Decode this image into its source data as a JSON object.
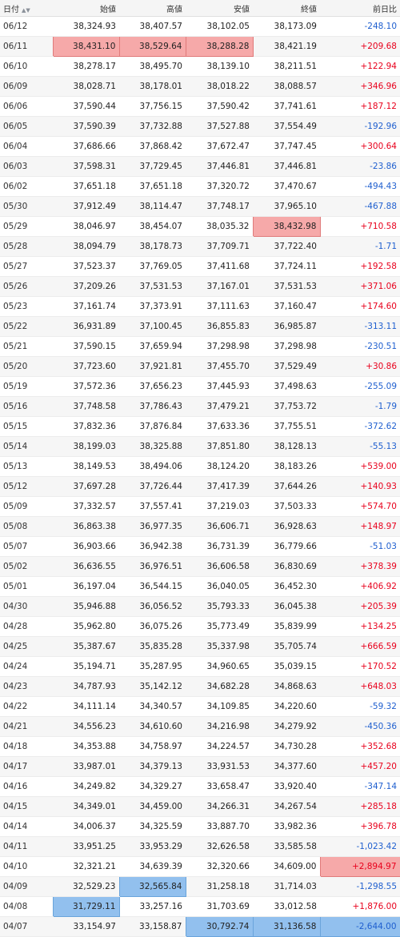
{
  "headers": {
    "date": "日付",
    "open": "始値",
    "high": "高値",
    "low": "安値",
    "close": "終値",
    "change": "前日比"
  },
  "colors": {
    "positive": "#e8001c",
    "negative": "#1f5fcf",
    "highlight_red": "#f6a9a9",
    "highlight_blue": "#92c0ee"
  },
  "rows": [
    {
      "date": "06/12",
      "open": "38,324.93",
      "high": "38,407.57",
      "low": "38,102.05",
      "close": "38,173.09",
      "change": "-248.10"
    },
    {
      "date": "06/11",
      "open": "38,431.10",
      "high": "38,529.64",
      "low": "38,288.28",
      "close": "38,421.19",
      "change": "+209.68",
      "hl": {
        "open": "red",
        "high": "red",
        "low": "red"
      }
    },
    {
      "date": "06/10",
      "open": "38,278.17",
      "high": "38,495.70",
      "low": "38,139.10",
      "close": "38,211.51",
      "change": "+122.94"
    },
    {
      "date": "06/09",
      "open": "38,028.71",
      "high": "38,178.01",
      "low": "38,018.22",
      "close": "38,088.57",
      "change": "+346.96"
    },
    {
      "date": "06/06",
      "open": "37,590.44",
      "high": "37,756.15",
      "low": "37,590.42",
      "close": "37,741.61",
      "change": "+187.12"
    },
    {
      "date": "06/05",
      "open": "37,590.39",
      "high": "37,732.88",
      "low": "37,527.88",
      "close": "37,554.49",
      "change": "-192.96"
    },
    {
      "date": "06/04",
      "open": "37,686.66",
      "high": "37,868.42",
      "low": "37,672.47",
      "close": "37,747.45",
      "change": "+300.64"
    },
    {
      "date": "06/03",
      "open": "37,598.31",
      "high": "37,729.45",
      "low": "37,446.81",
      "close": "37,446.81",
      "change": "-23.86"
    },
    {
      "date": "06/02",
      "open": "37,651.18",
      "high": "37,651.18",
      "low": "37,320.72",
      "close": "37,470.67",
      "change": "-494.43"
    },
    {
      "date": "05/30",
      "open": "37,912.49",
      "high": "38,114.47",
      "low": "37,748.17",
      "close": "37,965.10",
      "change": "-467.88"
    },
    {
      "date": "05/29",
      "open": "38,046.97",
      "high": "38,454.07",
      "low": "38,035.32",
      "close": "38,432.98",
      "change": "+710.58",
      "hl": {
        "close": "red"
      }
    },
    {
      "date": "05/28",
      "open": "38,094.79",
      "high": "38,178.73",
      "low": "37,709.71",
      "close": "37,722.40",
      "change": "-1.71"
    },
    {
      "date": "05/27",
      "open": "37,523.37",
      "high": "37,769.05",
      "low": "37,411.68",
      "close": "37,724.11",
      "change": "+192.58"
    },
    {
      "date": "05/26",
      "open": "37,209.26",
      "high": "37,531.53",
      "low": "37,167.01",
      "close": "37,531.53",
      "change": "+371.06"
    },
    {
      "date": "05/23",
      "open": "37,161.74",
      "high": "37,373.91",
      "low": "37,111.63",
      "close": "37,160.47",
      "change": "+174.60"
    },
    {
      "date": "05/22",
      "open": "36,931.89",
      "high": "37,100.45",
      "low": "36,855.83",
      "close": "36,985.87",
      "change": "-313.11"
    },
    {
      "date": "05/21",
      "open": "37,590.15",
      "high": "37,659.94",
      "low": "37,298.98",
      "close": "37,298.98",
      "change": "-230.51"
    },
    {
      "date": "05/20",
      "open": "37,723.60",
      "high": "37,921.81",
      "low": "37,455.70",
      "close": "37,529.49",
      "change": "+30.86"
    },
    {
      "date": "05/19",
      "open": "37,572.36",
      "high": "37,656.23",
      "low": "37,445.93",
      "close": "37,498.63",
      "change": "-255.09"
    },
    {
      "date": "05/16",
      "open": "37,748.58",
      "high": "37,786.43",
      "low": "37,479.21",
      "close": "37,753.72",
      "change": "-1.79"
    },
    {
      "date": "05/15",
      "open": "37,832.36",
      "high": "37,876.84",
      "low": "37,633.36",
      "close": "37,755.51",
      "change": "-372.62"
    },
    {
      "date": "05/14",
      "open": "38,199.03",
      "high": "38,325.88",
      "low": "37,851.80",
      "close": "38,128.13",
      "change": "-55.13"
    },
    {
      "date": "05/13",
      "open": "38,149.53",
      "high": "38,494.06",
      "low": "38,124.20",
      "close": "38,183.26",
      "change": "+539.00"
    },
    {
      "date": "05/12",
      "open": "37,697.28",
      "high": "37,726.44",
      "low": "37,417.39",
      "close": "37,644.26",
      "change": "+140.93"
    },
    {
      "date": "05/09",
      "open": "37,332.57",
      "high": "37,557.41",
      "low": "37,219.03",
      "close": "37,503.33",
      "change": "+574.70"
    },
    {
      "date": "05/08",
      "open": "36,863.38",
      "high": "36,977.35",
      "low": "36,606.71",
      "close": "36,928.63",
      "change": "+148.97"
    },
    {
      "date": "05/07",
      "open": "36,903.66",
      "high": "36,942.38",
      "low": "36,731.39",
      "close": "36,779.66",
      "change": "-51.03"
    },
    {
      "date": "05/02",
      "open": "36,636.55",
      "high": "36,976.51",
      "low": "36,606.58",
      "close": "36,830.69",
      "change": "+378.39"
    },
    {
      "date": "05/01",
      "open": "36,197.04",
      "high": "36,544.15",
      "low": "36,040.05",
      "close": "36,452.30",
      "change": "+406.92"
    },
    {
      "date": "04/30",
      "open": "35,946.88",
      "high": "36,056.52",
      "low": "35,793.33",
      "close": "36,045.38",
      "change": "+205.39"
    },
    {
      "date": "04/28",
      "open": "35,962.80",
      "high": "36,075.26",
      "low": "35,773.49",
      "close": "35,839.99",
      "change": "+134.25"
    },
    {
      "date": "04/25",
      "open": "35,387.67",
      "high": "35,835.28",
      "low": "35,337.98",
      "close": "35,705.74",
      "change": "+666.59"
    },
    {
      "date": "04/24",
      "open": "35,194.71",
      "high": "35,287.95",
      "low": "34,960.65",
      "close": "35,039.15",
      "change": "+170.52"
    },
    {
      "date": "04/23",
      "open": "34,787.93",
      "high": "35,142.12",
      "low": "34,682.28",
      "close": "34,868.63",
      "change": "+648.03"
    },
    {
      "date": "04/22",
      "open": "34,111.14",
      "high": "34,340.57",
      "low": "34,109.85",
      "close": "34,220.60",
      "change": "-59.32"
    },
    {
      "date": "04/21",
      "open": "34,556.23",
      "high": "34,610.60",
      "low": "34,216.98",
      "close": "34,279.92",
      "change": "-450.36"
    },
    {
      "date": "04/18",
      "open": "34,353.88",
      "high": "34,758.97",
      "low": "34,224.57",
      "close": "34,730.28",
      "change": "+352.68"
    },
    {
      "date": "04/17",
      "open": "33,987.01",
      "high": "34,379.13",
      "low": "33,931.53",
      "close": "34,377.60",
      "change": "+457.20"
    },
    {
      "date": "04/16",
      "open": "34,249.82",
      "high": "34,329.27",
      "low": "33,658.47",
      "close": "33,920.40",
      "change": "-347.14"
    },
    {
      "date": "04/15",
      "open": "34,349.01",
      "high": "34,459.00",
      "low": "34,266.31",
      "close": "34,267.54",
      "change": "+285.18"
    },
    {
      "date": "04/14",
      "open": "34,006.37",
      "high": "34,325.59",
      "low": "33,887.70",
      "close": "33,982.36",
      "change": "+396.78"
    },
    {
      "date": "04/11",
      "open": "33,951.25",
      "high": "33,953.29",
      "low": "32,626.58",
      "close": "33,585.58",
      "change": "-1,023.42"
    },
    {
      "date": "04/10",
      "open": "32,321.21",
      "high": "34,639.39",
      "low": "32,320.66",
      "close": "34,609.00",
      "change": "+2,894.97",
      "hl": {
        "change": "red"
      }
    },
    {
      "date": "04/09",
      "open": "32,529.23",
      "high": "32,565.84",
      "low": "31,258.18",
      "close": "31,714.03",
      "change": "-1,298.55",
      "hl": {
        "high": "blue"
      }
    },
    {
      "date": "04/08",
      "open": "31,729.11",
      "high": "33,257.16",
      "low": "31,703.69",
      "close": "33,012.58",
      "change": "+1,876.00",
      "hl": {
        "open": "blue"
      }
    },
    {
      "date": "04/07",
      "open": "33,154.97",
      "high": "33,158.87",
      "low": "30,792.74",
      "close": "31,136.58",
      "change": "-2,644.00",
      "hl": {
        "low": "blue",
        "close": "blue",
        "change": "blue"
      }
    }
  ]
}
